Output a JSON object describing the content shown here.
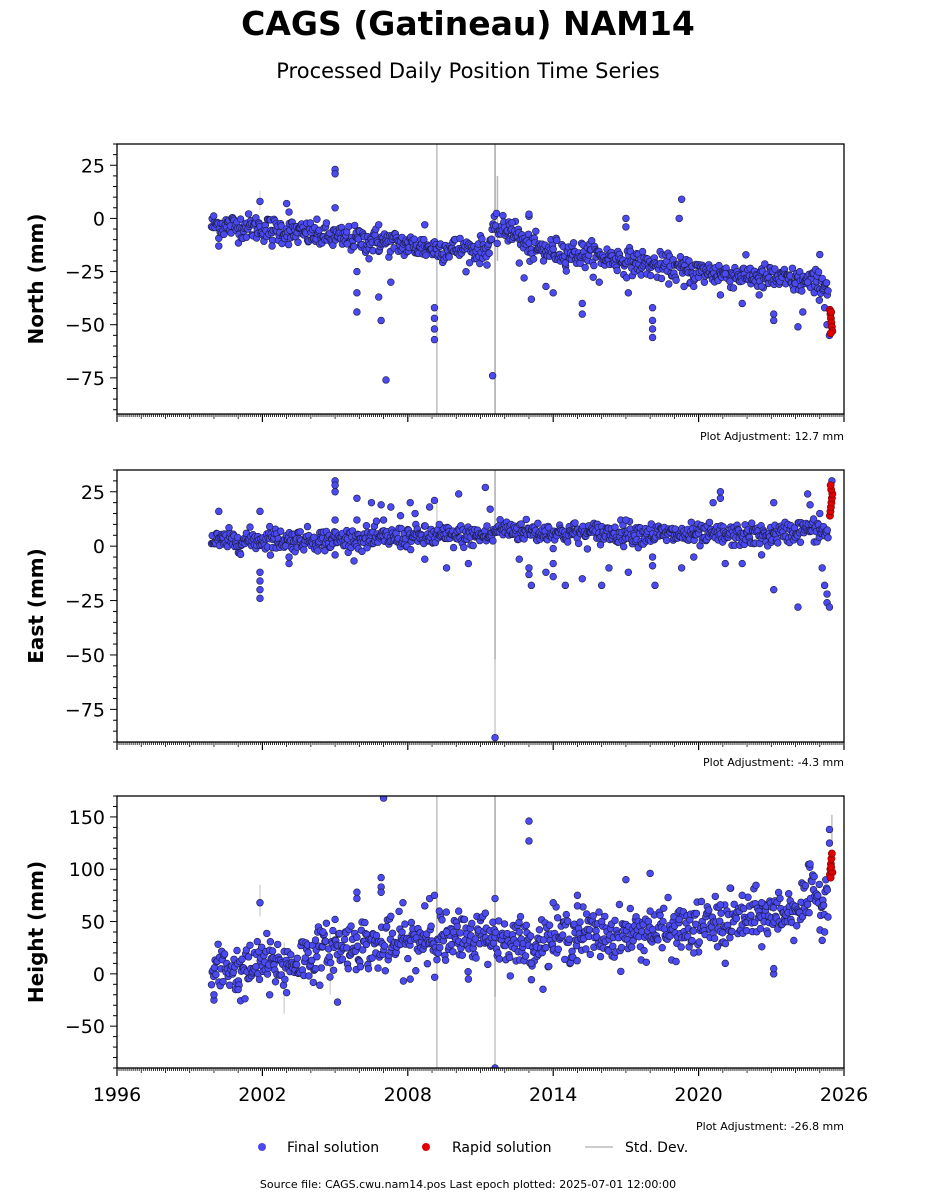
{
  "title": "CAGS (Gatineau) NAM14",
  "subtitle": "Processed Daily Position Time Series",
  "footer": "Source file: CAGS.cwu.nam14.pos  Last epoch plotted: 2025-07-01 12:00:00",
  "legend": {
    "final": "Final solution",
    "rapid": "Rapid solution",
    "std": "Std. Dev."
  },
  "colors": {
    "final": "#4a4af0",
    "rapid": "#e00000",
    "std": "#bbbbbb"
  },
  "chart_data": [
    {
      "type": "scatter",
      "ylabel": "North (mm)",
      "ylim": [
        -92,
        35
      ],
      "xlim": [
        1996,
        2026
      ],
      "yticks": [
        25,
        0,
        -25,
        -50,
        -75
      ],
      "show_x_tick_labels": false,
      "adjustment": "Plot Adjustment: 12.7 mm",
      "trend": [
        [
          1999.9,
          -3
        ],
        [
          2001.5,
          -4
        ],
        [
          2003,
          -6
        ],
        [
          2005,
          -9
        ],
        [
          2007,
          -11
        ],
        [
          2009,
          -14
        ],
        [
          2011.3,
          -15
        ],
        [
          2011.5,
          -6
        ],
        [
          2012.3,
          -5
        ],
        [
          2013,
          -14
        ],
        [
          2016,
          -18
        ],
        [
          2018,
          -22
        ],
        [
          2020,
          -25
        ],
        [
          2023,
          -28
        ],
        [
          2025.3,
          -31
        ]
      ],
      "spread": 3,
      "outliers": [
        [
          2000.2,
          -13
        ],
        [
          2001.9,
          8
        ],
        [
          2002.4,
          -13
        ],
        [
          2003,
          7
        ],
        [
          2003.1,
          3
        ],
        [
          2005,
          23
        ],
        [
          2005,
          21
        ],
        [
          2005,
          5
        ],
        [
          2005.5,
          -12
        ],
        [
          2005.9,
          -25
        ],
        [
          2005.9,
          -35
        ],
        [
          2005.9,
          -44
        ],
        [
          2006.4,
          -19
        ],
        [
          2006.8,
          -3
        ],
        [
          2006.8,
          -37
        ],
        [
          2006.9,
          -48
        ],
        [
          2007.1,
          -76
        ],
        [
          2007.3,
          -30
        ],
        [
          2008.7,
          -3
        ],
        [
          2009.1,
          -42
        ],
        [
          2009.1,
          -47
        ],
        [
          2009.1,
          -52
        ],
        [
          2009.1,
          -57
        ],
        [
          2011.5,
          -74
        ],
        [
          2012.3,
          -2
        ],
        [
          2012.6,
          -21
        ],
        [
          2012.8,
          -28
        ],
        [
          2013,
          1
        ],
        [
          2013,
          2
        ],
        [
          2013.1,
          -38
        ],
        [
          2013.6,
          -20
        ],
        [
          2013.7,
          -32
        ],
        [
          2014,
          -35
        ],
        [
          2014.5,
          -21
        ],
        [
          2015.2,
          -45
        ],
        [
          2015.2,
          -40
        ],
        [
          2015.9,
          -30
        ],
        [
          2017,
          0
        ],
        [
          2017,
          -4
        ],
        [
          2017.1,
          -35
        ],
        [
          2018.1,
          -42
        ],
        [
          2018.1,
          -48
        ],
        [
          2018.1,
          -52
        ],
        [
          2018.1,
          -56
        ],
        [
          2019.2,
          0
        ],
        [
          2019.3,
          9
        ],
        [
          2019.4,
          -32
        ],
        [
          2019.8,
          -32
        ],
        [
          2020.9,
          -36
        ],
        [
          2021.1,
          -26
        ],
        [
          2021.8,
          -40
        ],
        [
          2022.5,
          -36
        ],
        [
          2022.6,
          -32
        ],
        [
          2023.1,
          -45
        ],
        [
          2023.1,
          -48
        ],
        [
          2024.1,
          -51
        ],
        [
          2024.3,
          -44
        ],
        [
          2024.5,
          -30
        ],
        [
          2025,
          -17
        ],
        [
          2025.2,
          -42
        ],
        [
          2025.3,
          -50
        ],
        [
          2025.4,
          -55
        ]
      ],
      "rapid": [
        [
          2025.42,
          -43
        ],
        [
          2025.44,
          -45
        ],
        [
          2025.46,
          -47
        ],
        [
          2025.48,
          -49
        ],
        [
          2025.5,
          -51
        ],
        [
          2025.52,
          -53
        ],
        [
          2025.47,
          -44
        ],
        [
          2025.45,
          -54
        ]
      ],
      "std_spikes": [
        [
          2009.2,
          35,
          -92,
          0.65
        ],
        [
          2011.6,
          35,
          -92,
          0.85
        ],
        [
          2011.7,
          20,
          -20,
          0.7
        ],
        [
          2001.9,
          13,
          4,
          0.3
        ]
      ]
    },
    {
      "type": "scatter",
      "ylabel": "East (mm)",
      "ylim": [
        -90,
        35
      ],
      "xlim": [
        1996,
        2026
      ],
      "yticks": [
        25,
        0,
        -25,
        -50,
        -75
      ],
      "show_x_tick_labels": false,
      "adjustment": "Plot Adjustment: -4.3 mm",
      "trend": [
        [
          1999.9,
          2
        ],
        [
          2002,
          3
        ],
        [
          2005,
          3
        ],
        [
          2008,
          4
        ],
        [
          2011.5,
          5
        ],
        [
          2011.7,
          8
        ],
        [
          2014,
          6
        ],
        [
          2017,
          6
        ],
        [
          2020,
          5
        ],
        [
          2023,
          5
        ],
        [
          2024.5,
          8
        ],
        [
          2025.3,
          6
        ]
      ],
      "spread": 2.5,
      "outliers": [
        [
          2000.2,
          16
        ],
        [
          2001.9,
          16
        ],
        [
          2001.9,
          -12
        ],
        [
          2001.9,
          -16
        ],
        [
          2001.9,
          -20
        ],
        [
          2001.9,
          -24
        ],
        [
          2002.3,
          9
        ],
        [
          2003.1,
          -5
        ],
        [
          2003.1,
          -8
        ],
        [
          2005,
          30
        ],
        [
          2005,
          28
        ],
        [
          2005,
          25
        ],
        [
          2005,
          12
        ],
        [
          2005,
          -4
        ],
        [
          2005.9,
          22
        ],
        [
          2005.9,
          12
        ],
        [
          2006.5,
          20
        ],
        [
          2006.9,
          19
        ],
        [
          2007,
          12
        ],
        [
          2007.3,
          18
        ],
        [
          2007.7,
          14
        ],
        [
          2008.1,
          20
        ],
        [
          2008.3,
          15
        ],
        [
          2008.7,
          -6
        ],
        [
          2008.9,
          18
        ],
        [
          2009.1,
          21
        ],
        [
          2009.3,
          10
        ],
        [
          2009.6,
          -10
        ],
        [
          2010.1,
          24
        ],
        [
          2010.5,
          -8
        ],
        [
          2011.2,
          27
        ],
        [
          2011.4,
          17
        ],
        [
          2011.6,
          -88
        ],
        [
          2012.6,
          -6
        ],
        [
          2013,
          -10
        ],
        [
          2013,
          -13
        ],
        [
          2013.1,
          -18
        ],
        [
          2013.7,
          -12
        ],
        [
          2014,
          -8
        ],
        [
          2014,
          -14
        ],
        [
          2014.5,
          -18
        ],
        [
          2015.2,
          -15
        ],
        [
          2016,
          -18
        ],
        [
          2016.3,
          -10
        ],
        [
          2017,
          12
        ],
        [
          2017.1,
          -12
        ],
        [
          2018.1,
          -5
        ],
        [
          2018.1,
          -9
        ],
        [
          2018.2,
          -18
        ],
        [
          2019.3,
          -10
        ],
        [
          2019.8,
          -5
        ],
        [
          2020.6,
          20
        ],
        [
          2020.9,
          25
        ],
        [
          2020.9,
          22
        ],
        [
          2021.1,
          -8
        ],
        [
          2021.8,
          -8
        ],
        [
          2022.6,
          -4
        ],
        [
          2023.1,
          20
        ],
        [
          2023.1,
          -20
        ],
        [
          2024.1,
          -28
        ],
        [
          2024.5,
          24
        ],
        [
          2024.6,
          19
        ],
        [
          2025,
          15
        ],
        [
          2025.1,
          -10
        ],
        [
          2025.2,
          -18
        ],
        [
          2025.3,
          -22
        ],
        [
          2025.3,
          -26
        ],
        [
          2025.4,
          -28
        ],
        [
          2025.5,
          30
        ]
      ],
      "rapid": [
        [
          2025.42,
          14
        ],
        [
          2025.44,
          16
        ],
        [
          2025.46,
          18
        ],
        [
          2025.48,
          20
        ],
        [
          2025.5,
          22
        ],
        [
          2025.52,
          24
        ],
        [
          2025.47,
          26
        ],
        [
          2025.45,
          28
        ]
      ],
      "std_spikes": [
        [
          2011.6,
          35,
          -52,
          0.8
        ],
        [
          2011.6,
          -52,
          -90,
          0.5
        ],
        [
          2009.2,
          20,
          0,
          0.4
        ]
      ]
    },
    {
      "type": "scatter",
      "ylabel": "Height (mm)",
      "ylim": [
        -90,
        170
      ],
      "xlim": [
        1996,
        2026
      ],
      "yticks": [
        150,
        100,
        50,
        0,
        -50
      ],
      "show_x_tick_labels": true,
      "xticks": [
        1996,
        2002,
        2008,
        2014,
        2020,
        2026
      ],
      "adjustment": "Plot Adjustment: -26.8 mm",
      "trend": [
        [
          1999.9,
          -2
        ],
        [
          2000.5,
          8
        ],
        [
          2001.2,
          0
        ],
        [
          2002,
          12
        ],
        [
          2003,
          8
        ],
        [
          2004,
          18
        ],
        [
          2005,
          25
        ],
        [
          2006,
          30
        ],
        [
          2007,
          25
        ],
        [
          2008,
          30
        ],
        [
          2009,
          35
        ],
        [
          2010,
          30
        ],
        [
          2011,
          37
        ],
        [
          2012,
          33
        ],
        [
          2013,
          28
        ],
        [
          2014,
          32
        ],
        [
          2015,
          38
        ],
        [
          2016,
          36
        ],
        [
          2017,
          38
        ],
        [
          2018,
          40
        ],
        [
          2019,
          40
        ],
        [
          2020,
          45
        ],
        [
          2021,
          48
        ],
        [
          2022,
          52
        ],
        [
          2023,
          56
        ],
        [
          2024,
          62
        ],
        [
          2024.7,
          75
        ],
        [
          2025.2,
          70
        ],
        [
          2025.4,
          90
        ]
      ],
      "spread": 12,
      "outliers": [
        [
          2000,
          -25
        ],
        [
          2000,
          -20
        ],
        [
          2001,
          -15
        ],
        [
          2001.9,
          68
        ],
        [
          2002.3,
          -20
        ],
        [
          2003,
          -18
        ],
        [
          2004.2,
          5
        ],
        [
          2004.5,
          40
        ],
        [
          2005,
          52
        ],
        [
          2005.1,
          -27
        ],
        [
          2005.9,
          78
        ],
        [
          2005.9,
          72
        ],
        [
          2006.9,
          92
        ],
        [
          2006.9,
          83
        ],
        [
          2006.9,
          78
        ],
        [
          2007,
          168
        ],
        [
          2007.3,
          55
        ],
        [
          2007.8,
          68
        ],
        [
          2008.1,
          -5
        ],
        [
          2008.7,
          65
        ],
        [
          2008.9,
          72
        ],
        [
          2009.1,
          75
        ],
        [
          2009.3,
          60
        ],
        [
          2009.6,
          40
        ],
        [
          2010.1,
          60
        ],
        [
          2010.5,
          -5
        ],
        [
          2011.2,
          58
        ],
        [
          2011.6,
          72
        ],
        [
          2011.6,
          -90
        ],
        [
          2012.6,
          40
        ],
        [
          2013,
          146
        ],
        [
          2013,
          127
        ],
        [
          2013.1,
          10
        ],
        [
          2014,
          68
        ],
        [
          2015,
          75
        ],
        [
          2015,
          65
        ],
        [
          2016,
          50
        ],
        [
          2017,
          90
        ],
        [
          2018,
          96
        ],
        [
          2018,
          60
        ],
        [
          2019.2,
          52
        ],
        [
          2019.8,
          20
        ],
        [
          2020.9,
          66
        ],
        [
          2021.1,
          10
        ],
        [
          2021.3,
          82
        ],
        [
          2021.8,
          75
        ],
        [
          2022.6,
          68
        ],
        [
          2023.1,
          0
        ],
        [
          2023.1,
          5
        ],
        [
          2024.6,
          105
        ],
        [
          2025.1,
          32
        ],
        [
          2025.2,
          40
        ],
        [
          2025.4,
          125
        ],
        [
          2025.4,
          138
        ]
      ],
      "rapid": [
        [
          2025.42,
          95
        ],
        [
          2025.44,
          100
        ],
        [
          2025.46,
          105
        ],
        [
          2025.48,
          110
        ],
        [
          2025.5,
          115
        ],
        [
          2025.52,
          97
        ],
        [
          2025.47,
          102
        ],
        [
          2025.45,
          92
        ]
      ],
      "std_spikes": [
        [
          2009.2,
          170,
          -90,
          0.6
        ],
        [
          2011.6,
          170,
          -22,
          0.85
        ],
        [
          2011.6,
          -22,
          -90,
          0.55
        ],
        [
          2001.9,
          85,
          55,
          0.4
        ],
        [
          2002.9,
          30,
          -38,
          0.4
        ],
        [
          2004.8,
          40,
          -20,
          0.4
        ],
        [
          2009.2,
          90,
          40,
          0.4
        ],
        [
          2025.5,
          152,
          125,
          0.6
        ]
      ]
    }
  ]
}
